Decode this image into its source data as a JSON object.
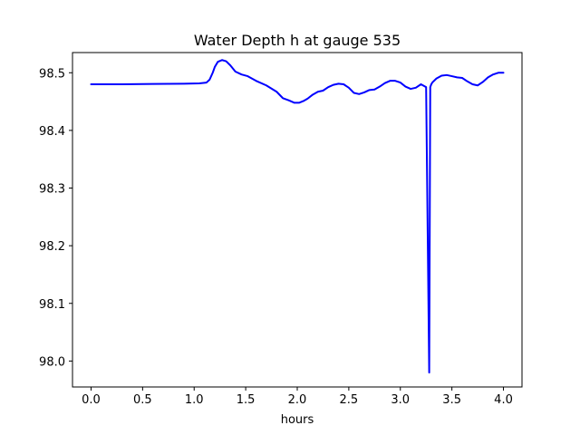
{
  "chart_data": {
    "type": "line",
    "title": "Water Depth h at gauge 535",
    "xlabel": "hours",
    "ylabel": "",
    "xlim": [
      -0.18,
      4.18
    ],
    "ylim": [
      97.955,
      98.535
    ],
    "xticks": [
      0.0,
      0.5,
      1.0,
      1.5,
      2.0,
      2.5,
      3.0,
      3.5,
      4.0
    ],
    "xtick_labels": [
      "0.0",
      "0.5",
      "1.0",
      "1.5",
      "2.0",
      "2.5",
      "3.0",
      "3.5",
      "4.0"
    ],
    "yticks": [
      98.0,
      98.1,
      98.2,
      98.3,
      98.4,
      98.5
    ],
    "ytick_labels": [
      "98.0",
      "98.1",
      "98.2",
      "98.3",
      "98.4",
      "98.5"
    ],
    "grid": false,
    "legend": "none",
    "series": [
      {
        "color": "#0000ff",
        "x": [
          0.0,
          0.3,
          0.6,
          0.9,
          1.05,
          1.12,
          1.15,
          1.18,
          1.2,
          1.23,
          1.27,
          1.31,
          1.35,
          1.4,
          1.46,
          1.52,
          1.6,
          1.7,
          1.8,
          1.86,
          1.92,
          1.97,
          2.02,
          2.06,
          2.1,
          2.15,
          2.2,
          2.25,
          2.3,
          2.35,
          2.4,
          2.45,
          2.5,
          2.55,
          2.6,
          2.65,
          2.7,
          2.75,
          2.8,
          2.85,
          2.9,
          2.95,
          3.0,
          3.05,
          3.1,
          3.15,
          3.2,
          3.25,
          3.28,
          3.29,
          3.3,
          3.31,
          3.35,
          3.4,
          3.45,
          3.5,
          3.55,
          3.6,
          3.65,
          3.7,
          3.75,
          3.8,
          3.85,
          3.9,
          3.95,
          4.0
        ],
        "y": [
          98.48,
          98.48,
          98.4805,
          98.481,
          98.4815,
          98.483,
          98.488,
          98.5,
          98.51,
          98.519,
          98.522,
          98.52,
          98.513,
          98.502,
          98.497,
          98.494,
          98.486,
          98.478,
          98.467,
          98.456,
          98.452,
          98.448,
          98.448,
          98.451,
          98.455,
          98.462,
          98.467,
          98.469,
          98.475,
          98.479,
          98.481,
          98.48,
          98.474,
          98.465,
          98.463,
          98.466,
          98.47,
          98.471,
          98.476,
          98.482,
          98.486,
          98.486,
          98.483,
          98.476,
          98.472,
          98.474,
          98.48,
          98.475,
          97.98,
          98.475,
          98.48,
          98.483,
          98.49,
          98.495,
          98.496,
          98.494,
          98.492,
          98.491,
          98.485,
          98.48,
          98.478,
          98.484,
          98.492,
          98.497,
          98.5,
          98.5
        ]
      }
    ]
  }
}
